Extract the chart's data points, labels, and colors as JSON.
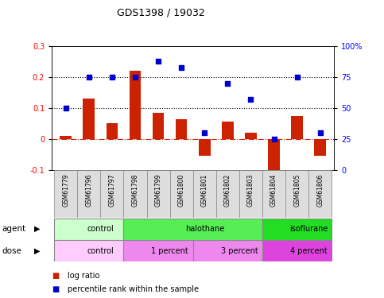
{
  "title": "GDS1398 / 19032",
  "samples": [
    "GSM61779",
    "GSM61796",
    "GSM61797",
    "GSM61798",
    "GSM61799",
    "GSM61800",
    "GSM61801",
    "GSM61802",
    "GSM61803",
    "GSM61804",
    "GSM61805",
    "GSM61806"
  ],
  "log_ratio": [
    0.01,
    0.13,
    0.05,
    0.22,
    0.085,
    0.065,
    -0.055,
    0.055,
    0.02,
    -0.13,
    0.075,
    -0.055
  ],
  "percentile_rank": [
    50,
    75,
    75,
    75,
    88,
    83,
    30,
    70,
    57,
    25,
    75,
    30
  ],
  "ylim_left": [
    -0.1,
    0.3
  ],
  "ylim_right": [
    0,
    100
  ],
  "yticks_left": [
    -0.1,
    0.0,
    0.1,
    0.2,
    0.3
  ],
  "yticks_right": [
    0,
    25,
    50,
    75,
    100
  ],
  "hlines_dotted": [
    0.1,
    0.2
  ],
  "bar_color": "#cc2200",
  "scatter_color": "#0000cc",
  "zero_line_color": "#cc2200",
  "agent_groups": [
    {
      "label": "control",
      "start": 0,
      "end": 3,
      "color": "#ccffcc"
    },
    {
      "label": "halothane",
      "start": 3,
      "end": 9,
      "color": "#55ee55"
    },
    {
      "label": "isoflurane",
      "start": 9,
      "end": 12,
      "color": "#22dd22"
    }
  ],
  "dose_groups": [
    {
      "label": "control",
      "start": 0,
      "end": 3,
      "color": "#ffccff"
    },
    {
      "label": "1 percent",
      "start": 3,
      "end": 6,
      "color": "#ee88ee"
    },
    {
      "label": "3 percent",
      "start": 6,
      "end": 9,
      "color": "#ee88ee"
    },
    {
      "label": "4 percent",
      "start": 9,
      "end": 12,
      "color": "#dd44dd"
    }
  ],
  "legend_items": [
    {
      "label": "log ratio",
      "color": "#cc2200"
    },
    {
      "label": "percentile rank within the sample",
      "color": "#0000cc"
    }
  ],
  "bar_width": 0.5,
  "agent_label": "agent",
  "dose_label": "dose",
  "label_bg": "#dddddd"
}
